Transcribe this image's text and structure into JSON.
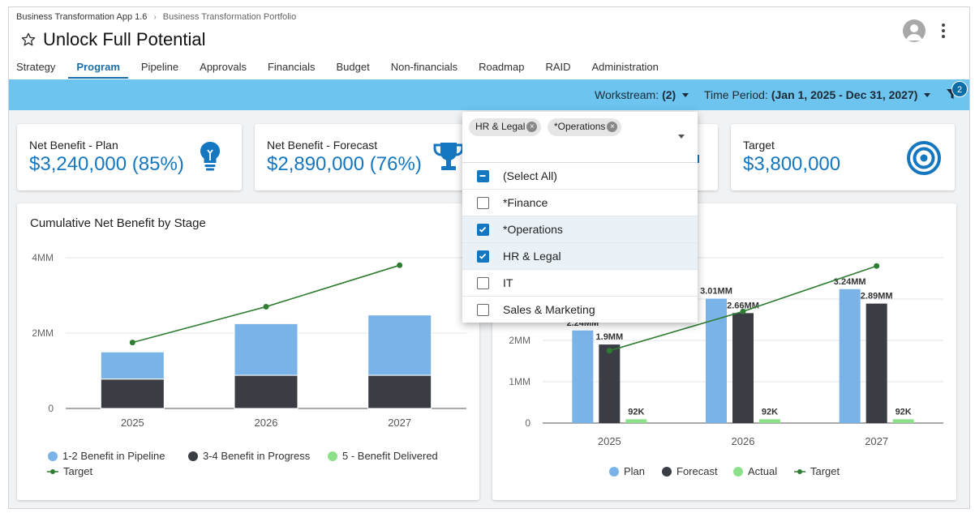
{
  "app": {
    "breadcrumb": [
      "Business Transformation App 1.6",
      "Business Transformation Portfolio"
    ],
    "title": "Unlock Full Potential"
  },
  "tabs": [
    {
      "label": "Strategy",
      "active": false
    },
    {
      "label": "Program",
      "active": true
    },
    {
      "label": "Pipeline",
      "active": false
    },
    {
      "label": "Approvals",
      "active": false
    },
    {
      "label": "Financials",
      "active": false
    },
    {
      "label": "Budget",
      "active": false
    },
    {
      "label": "Non-financials",
      "active": false
    },
    {
      "label": "Roadmap",
      "active": false
    },
    {
      "label": "RAID",
      "active": false
    },
    {
      "label": "Administration",
      "active": false
    }
  ],
  "filters": {
    "workstream_label": "Workstream:",
    "workstream_value": "(2)",
    "time_period_label": "Time Period:",
    "time_period_value": "(Jan 1, 2025 - Dec 31, 2027)",
    "filter_count": "2"
  },
  "kpis": [
    {
      "label": "Net Benefit - Plan",
      "value": "$3,240,000 (85%)",
      "icon": "lightbulb-icon"
    },
    {
      "label": "Net Benefit - Forecast",
      "value": "$2,890,000 (76%)",
      "icon": "trophy-icon"
    },
    {
      "label": "Target",
      "value": "$3,800,000",
      "icon": "target-icon"
    }
  ],
  "dropdown": {
    "chips": [
      "HR & Legal",
      "*Operations"
    ],
    "options": [
      {
        "label": "(Select All)",
        "state": "partial"
      },
      {
        "label": "*Finance",
        "state": "unchecked"
      },
      {
        "label": "*Operations",
        "state": "checked"
      },
      {
        "label": "HR & Legal",
        "state": "checked"
      },
      {
        "label": "IT",
        "state": "unchecked"
      },
      {
        "label": "Sales & Marketing",
        "state": "unchecked"
      }
    ]
  },
  "colors": {
    "accent": "#1477c0",
    "filterbar": "#6cc4ef",
    "pipeline": "#7ab3e8",
    "progress": "#3a3d44",
    "delivered": "#8de08a",
    "target": "#2e7d32"
  },
  "chart_data": [
    {
      "type": "bar",
      "title": "Cumulative Net Benefit by Stage",
      "stacked": true,
      "categories": [
        "2025",
        "2026",
        "2027"
      ],
      "y_ticks": [
        "0",
        "2MM",
        "4MM"
      ],
      "ylim": [
        0,
        4000000
      ],
      "series": [
        {
          "name": "3-4 Benefit in Progress",
          "values": [
            780000,
            880000,
            880000
          ],
          "color": "#3a3d44"
        },
        {
          "name": "1-2 Benefit in Pipeline",
          "values": [
            720000,
            1370000,
            1600000
          ],
          "color": "#7ab3e8"
        },
        {
          "name": "5 - Benefit Delivered",
          "values": [
            0,
            0,
            0
          ],
          "color": "#8de08a"
        }
      ],
      "line": {
        "name": "Target",
        "values": [
          1750000,
          2700000,
          3800000
        ],
        "color": "#2e7d32"
      },
      "legend": [
        {
          "label": "1-2 Benefit in Pipeline",
          "color": "#7ab3e8",
          "kind": "dot"
        },
        {
          "label": "3-4 Benefit in Progress",
          "color": "#3a3d44",
          "kind": "dot"
        },
        {
          "label": "5 - Benefit Delivered",
          "color": "#8de08a",
          "kind": "dot"
        },
        {
          "label": "Target",
          "color": "#2e7d32",
          "kind": "line"
        }
      ]
    },
    {
      "type": "bar",
      "title": "",
      "grouped": true,
      "categories": [
        "2025",
        "2026",
        "2027"
      ],
      "y_ticks": [
        "0",
        "1MM",
        "2MM"
      ],
      "ylim": [
        0,
        3800000
      ],
      "series": [
        {
          "name": "Plan",
          "values": [
            2240000,
            3010000,
            3240000
          ],
          "labels": [
            "2.24MM",
            "3.01MM",
            "3.24MM"
          ],
          "color": "#7ab3e8"
        },
        {
          "name": "Forecast",
          "values": [
            1900000,
            2660000,
            2890000
          ],
          "labels": [
            "1.9MM",
            "2.66MM",
            "2.89MM"
          ],
          "color": "#3a3d44"
        },
        {
          "name": "Actual",
          "values": [
            92000,
            92000,
            92000
          ],
          "labels": [
            "92K",
            "92K",
            "92K"
          ],
          "color": "#8de08a"
        }
      ],
      "line": {
        "name": "Target",
        "values": [
          1750000,
          2700000,
          3800000
        ],
        "color": "#2e7d32"
      },
      "legend": [
        {
          "label": "Plan",
          "color": "#7ab3e8",
          "kind": "dot"
        },
        {
          "label": "Forecast",
          "color": "#3a3d44",
          "kind": "dot"
        },
        {
          "label": "Actual",
          "color": "#8de08a",
          "kind": "dot"
        },
        {
          "label": "Target",
          "color": "#2e7d32",
          "kind": "line"
        }
      ]
    }
  ]
}
